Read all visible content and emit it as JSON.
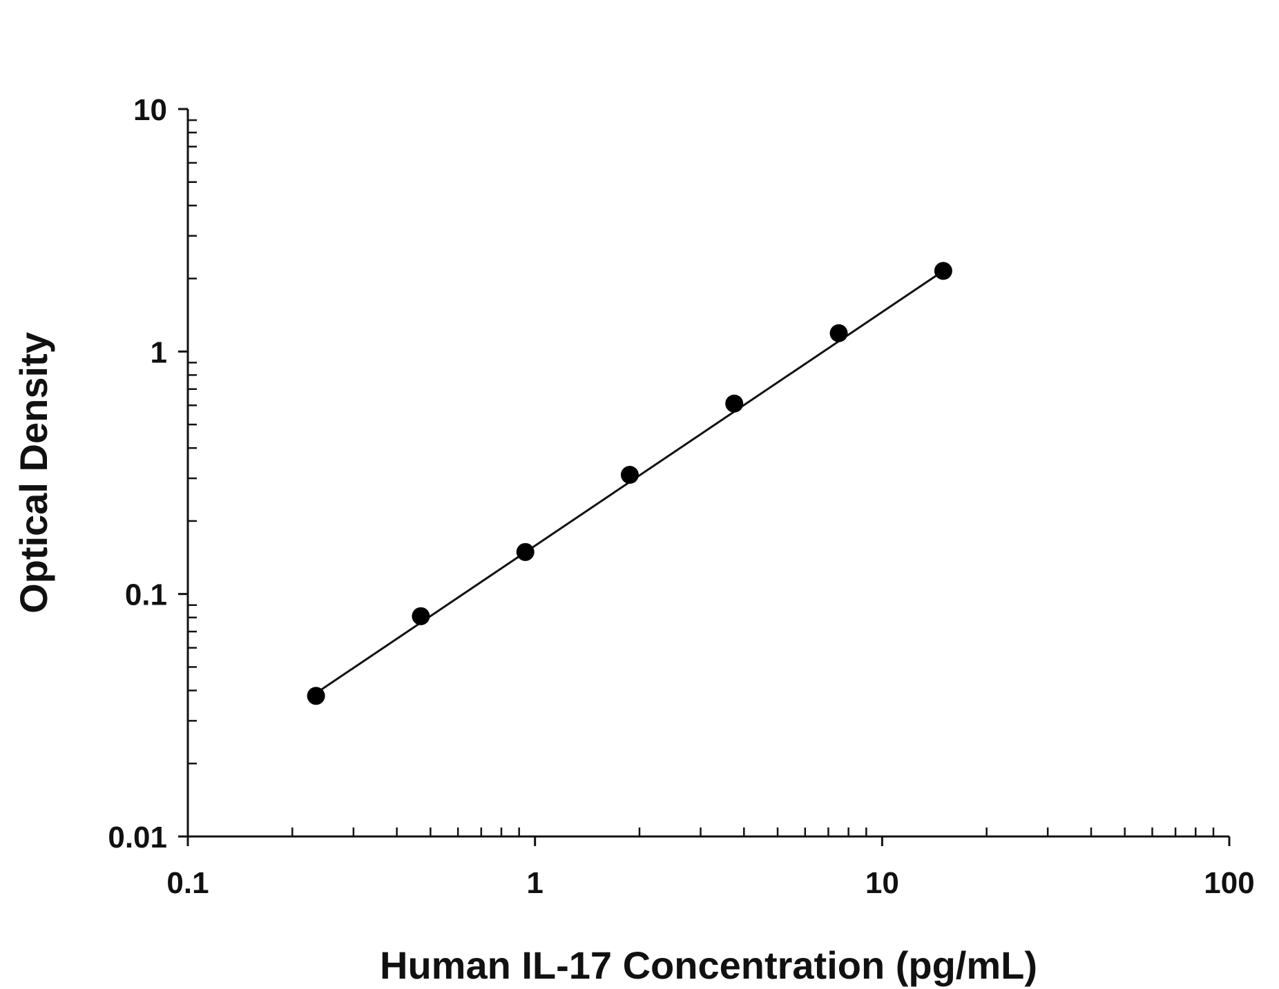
{
  "chart_data": {
    "type": "scatter",
    "xlabel": "Human IL-17 Concentration (pg/mL)",
    "ylabel": "Optical Density",
    "x_scale": "log",
    "y_scale": "log",
    "xlim": [
      0.1,
      100
    ],
    "ylim": [
      0.01,
      10
    ],
    "x_ticks": [
      "0.1",
      "1",
      "10",
      "100"
    ],
    "y_ticks": [
      "0.01",
      "0.1",
      "1",
      "10"
    ],
    "grid": false,
    "series": [
      {
        "points": [
          {
            "x": 0.234,
            "y": 0.038
          },
          {
            "x": 0.469,
            "y": 0.081
          },
          {
            "x": 0.938,
            "y": 0.149
          },
          {
            "x": 1.875,
            "y": 0.31
          },
          {
            "x": 3.75,
            "y": 0.61
          },
          {
            "x": 7.5,
            "y": 1.19
          },
          {
            "x": 15,
            "y": 2.15
          }
        ]
      }
    ],
    "fit_line": {
      "x": [
        0.234,
        15
      ],
      "y": [
        0.039,
        2.15
      ]
    },
    "colors": {
      "marker": "#000000",
      "line": "#111111"
    }
  }
}
